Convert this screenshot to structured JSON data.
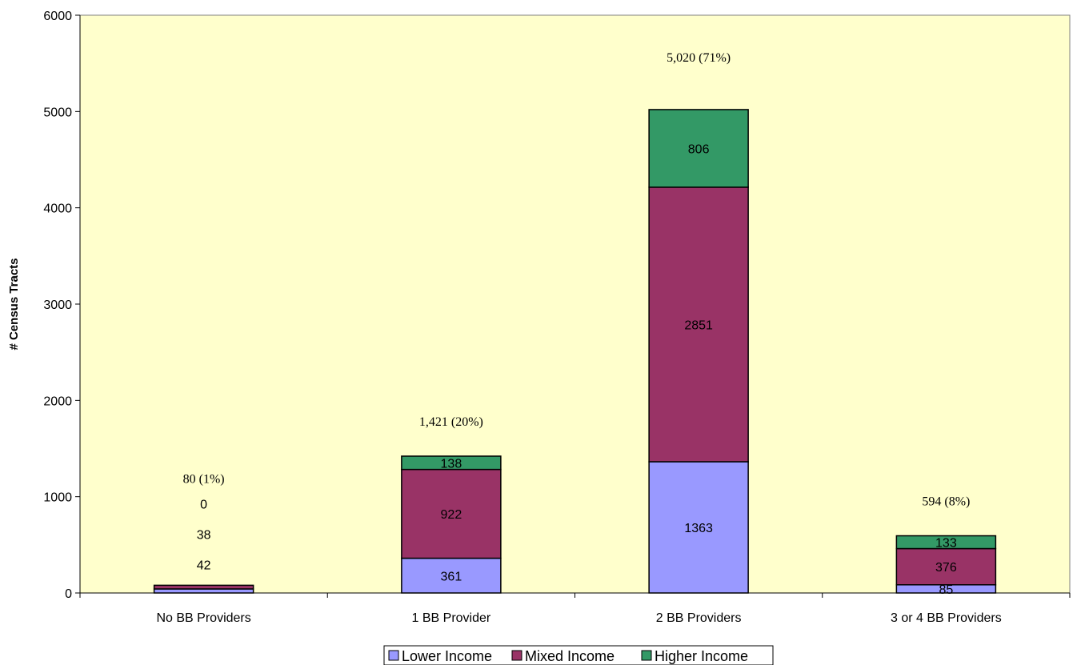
{
  "chart_data": {
    "type": "bar",
    "stacked": true,
    "categories": [
      "No BB Providers",
      "1 BB Provider",
      "2 BB Providers",
      "3 or 4 BB Providers"
    ],
    "series": [
      {
        "name": "Lower Income",
        "values": [
          42,
          361,
          1363,
          85
        ],
        "color": "#9999ff"
      },
      {
        "name": "Mixed Income",
        "values": [
          38,
          922,
          2851,
          376
        ],
        "color": "#993366"
      },
      {
        "name": "Higher Income",
        "values": [
          0,
          138,
          806,
          133
        ],
        "color": "#339966"
      }
    ],
    "totals": [
      "80 (1%)",
      "1,421 (20%)",
      "5,020 (71%)",
      "594 (8%)"
    ],
    "ylabel": "# Census Tracts",
    "ylim": [
      0,
      6000
    ],
    "yticks": [
      0,
      1000,
      2000,
      3000,
      4000,
      5000,
      6000
    ],
    "plot_background": "#ffffcc",
    "legend_position": "bottom-center"
  }
}
